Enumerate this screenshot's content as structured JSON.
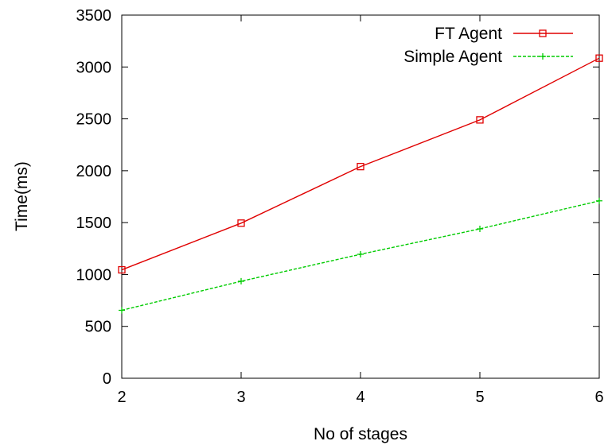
{
  "chart_data": {
    "type": "line",
    "title": "",
    "xlabel": "No of stages",
    "ylabel": "Time(ms)",
    "x": [
      2,
      3,
      4,
      5,
      6
    ],
    "xlim": [
      2,
      6
    ],
    "ylim": [
      0,
      3500
    ],
    "xticks": [
      "2",
      "3",
      "4",
      "5",
      "6"
    ],
    "yticks": [
      "0",
      "500",
      "1000",
      "1500",
      "2000",
      "2500",
      "3000",
      "3500"
    ],
    "grid": false,
    "legend_position": "top-right",
    "series": [
      {
        "name": "FT Agent",
        "values": [
          1045,
          1495,
          2040,
          2490,
          3085
        ],
        "color": "#e00000",
        "marker": "square",
        "dash": "solid"
      },
      {
        "name": "Simple Agent",
        "values": [
          655,
          935,
          1195,
          1440,
          1710
        ],
        "color": "#00cc00",
        "marker": "plus",
        "dash": "dashed"
      }
    ]
  }
}
